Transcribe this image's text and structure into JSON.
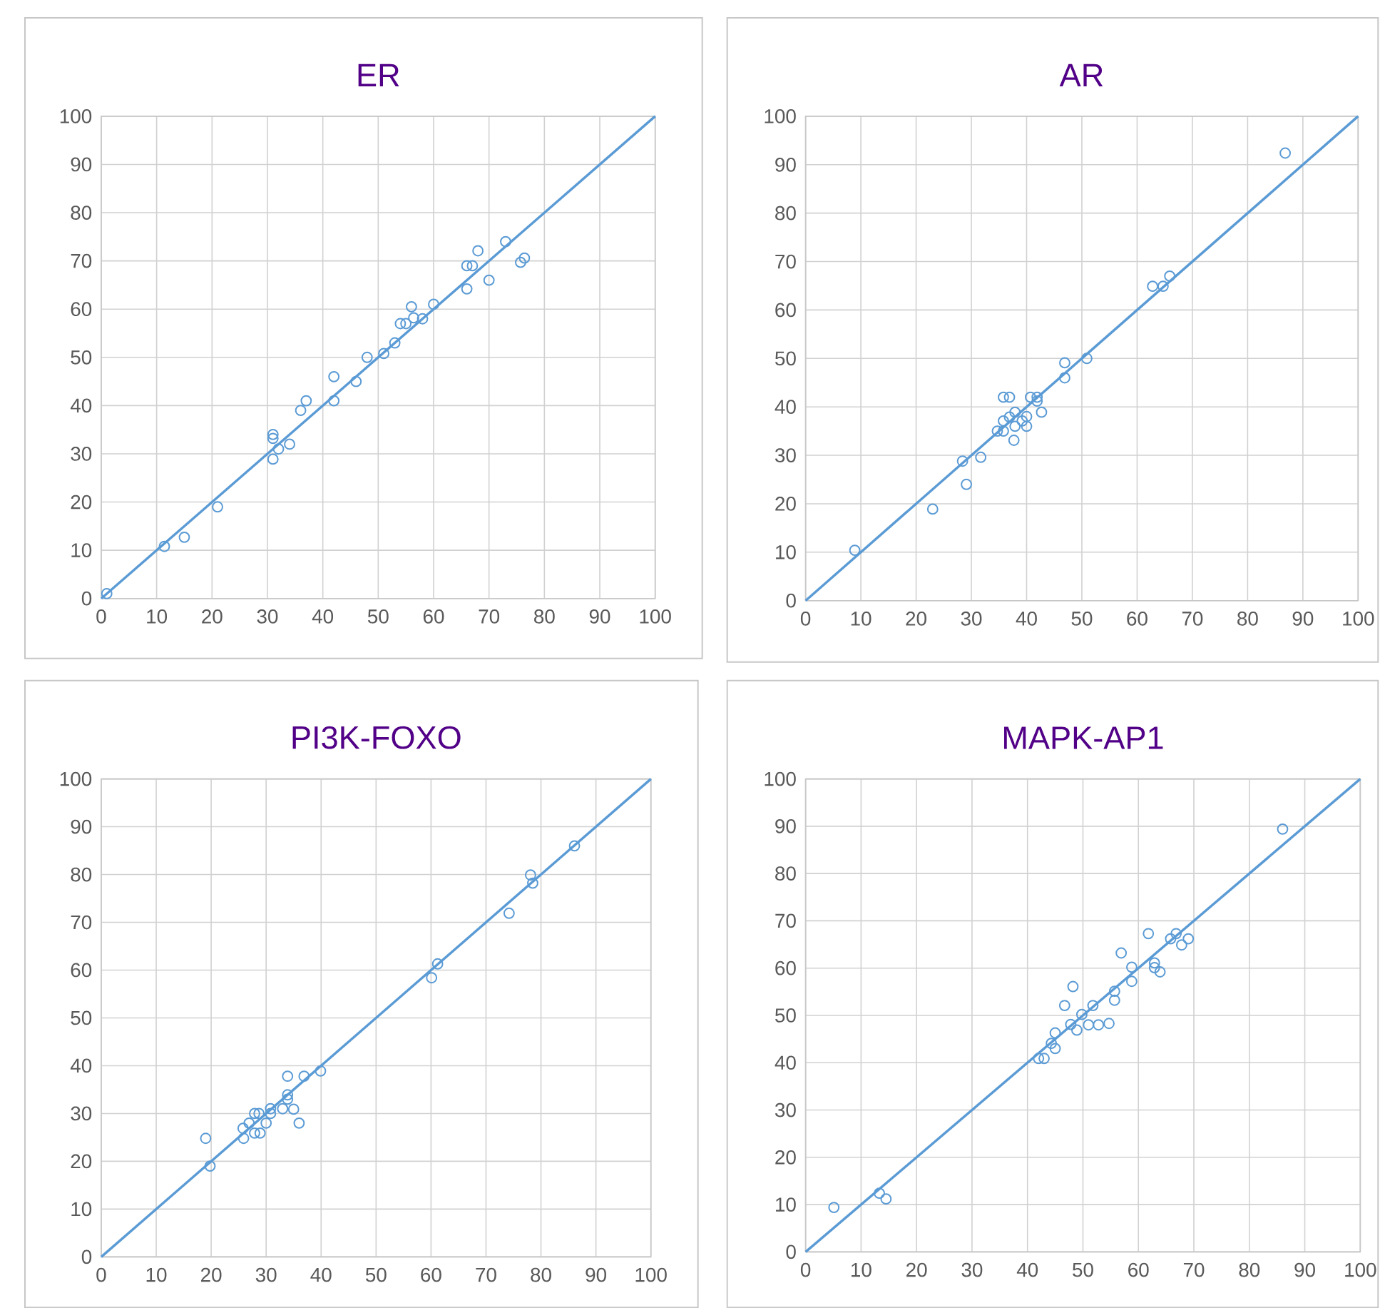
{
  "chart_data": [
    {
      "type": "scatter",
      "title": "ER",
      "marker": "circle",
      "grid": true,
      "xlim": [
        0,
        100
      ],
      "ylim": [
        0,
        100
      ],
      "xticks": [
        0,
        10,
        20,
        30,
        40,
        50,
        60,
        70,
        80,
        90,
        100
      ],
      "yticks": [
        0,
        10,
        20,
        30,
        40,
        50,
        60,
        70,
        80,
        90,
        100
      ],
      "series": [
        {
          "color": "#5b9bd5",
          "x": [
            1,
            11.4,
            15,
            21,
            31,
            31,
            32,
            34,
            31,
            36,
            37,
            42,
            42,
            46,
            48,
            51,
            53,
            54,
            55,
            56,
            56.4,
            58,
            60,
            66,
            66,
            67,
            68,
            70,
            73,
            75.7,
            76.4
          ],
          "values": [
            1,
            10.8,
            12.7,
            19,
            34,
            33.2,
            31,
            32,
            28.9,
            39,
            41,
            46,
            41,
            45,
            50,
            50.8,
            53,
            57,
            57,
            60.5,
            58.2,
            58,
            61,
            64.2,
            69,
            69,
            72.1,
            66,
            74,
            69.7,
            70.6
          ]
        },
        {
          "type": "line",
          "marker": "none",
          "color": "#5b9bd5",
          "x": [
            0,
            100
          ],
          "values": [
            0,
            100
          ]
        }
      ]
    },
    {
      "type": "scatter",
      "title": "AR",
      "marker": "circle",
      "grid": true,
      "xlim": [
        0,
        100
      ],
      "ylim": [
        0,
        100
      ],
      "xticks": [
        0,
        10,
        20,
        30,
        40,
        50,
        60,
        70,
        80,
        90,
        100
      ],
      "yticks": [
        0,
        10,
        20,
        30,
        40,
        50,
        60,
        70,
        80,
        90,
        100
      ],
      "series": [
        {
          "color": "#5b9bd5",
          "x": [
            8.9,
            23,
            28.4,
            29.1,
            31.7,
            34.7,
            35.8,
            35.8,
            35.8,
            36.9,
            37.7,
            36.9,
            37.9,
            37.9,
            39.2,
            40,
            40,
            40.7,
            41.9,
            41.9,
            42.7,
            46.9,
            46.9,
            50.9,
            62.8,
            64.7,
            65.9,
            86.8
          ],
          "values": [
            10.4,
            18.9,
            28.8,
            24,
            29.6,
            35,
            35,
            37.1,
            42,
            42,
            33.1,
            37.9,
            38.9,
            36,
            37.1,
            38,
            36,
            42,
            42,
            41.2,
            38.9,
            49.1,
            46,
            50,
            64.9,
            64.9,
            67,
            92.4
          ]
        },
        {
          "type": "line",
          "marker": "none",
          "color": "#5b9bd5",
          "x": [
            0,
            100
          ],
          "values": [
            0,
            100
          ]
        }
      ]
    },
    {
      "type": "scatter",
      "title": "PI3K-FOXO",
      "marker": "circle",
      "grid": true,
      "xlim": [
        0,
        100
      ],
      "ylim": [
        0,
        100
      ],
      "xticks": [
        0,
        10,
        20,
        30,
        40,
        50,
        60,
        70,
        80,
        90,
        100
      ],
      "yticks": [
        0,
        10,
        20,
        30,
        40,
        50,
        60,
        70,
        80,
        90,
        100
      ],
      "series": [
        {
          "color": "#5b9bd5",
          "x": [
            19,
            19.8,
            25.9,
            25.8,
            26.9,
            27.9,
            28.7,
            27.9,
            28.9,
            30,
            30.8,
            30.8,
            33,
            33.9,
            33.9,
            33.9,
            35,
            36,
            36.9,
            39.9,
            60.1,
            61.2,
            74.2,
            78.1,
            78.5,
            86.1
          ],
          "values": [
            24.8,
            19,
            24.8,
            26.9,
            28,
            30,
            30,
            25.9,
            25.9,
            28,
            31,
            30,
            31,
            33.9,
            33,
            37.8,
            30.9,
            28,
            37.8,
            38.9,
            58.4,
            61.3,
            71.9,
            79.9,
            78.2,
            86
          ]
        },
        {
          "type": "line",
          "marker": "none",
          "color": "#5b9bd5",
          "x": [
            0,
            100
          ],
          "values": [
            0,
            100
          ]
        }
      ]
    },
    {
      "type": "scatter",
      "title": "MAPK-AP1",
      "marker": "circle",
      "grid": true,
      "xlim": [
        0,
        100
      ],
      "ylim": [
        0,
        100
      ],
      "xticks": [
        0,
        10,
        20,
        30,
        40,
        50,
        60,
        70,
        80,
        90,
        100
      ],
      "yticks": [
        0,
        10,
        20,
        30,
        40,
        50,
        60,
        70,
        80,
        90,
        100
      ],
      "series": [
        {
          "color": "#5b9bd5",
          "x": [
            5.1,
            13.3,
            14.5,
            42,
            43,
            44.3,
            45,
            45,
            46.7,
            47.8,
            48.2,
            48.9,
            49.8,
            51,
            51.8,
            52.8,
            54.7,
            55.7,
            55.7,
            56.9,
            58.8,
            58.8,
            61.8,
            62.9,
            62.9,
            63.9,
            65.8,
            66.8,
            67.8,
            69,
            86
          ],
          "values": [
            9.4,
            12.4,
            11.2,
            40.9,
            40.9,
            44.1,
            46.3,
            43,
            52.1,
            48.1,
            56.1,
            46.9,
            50.2,
            48,
            52.1,
            48,
            48.3,
            55.1,
            53.2,
            63.2,
            60.2,
            57.2,
            67.3,
            61.1,
            60.1,
            59.2,
            66.2,
            67.3,
            64.9,
            66.2,
            89.4
          ]
        },
        {
          "type": "line",
          "marker": "none",
          "color": "#5b9bd5",
          "x": [
            0,
            100
          ],
          "values": [
            0,
            100
          ]
        }
      ]
    }
  ]
}
